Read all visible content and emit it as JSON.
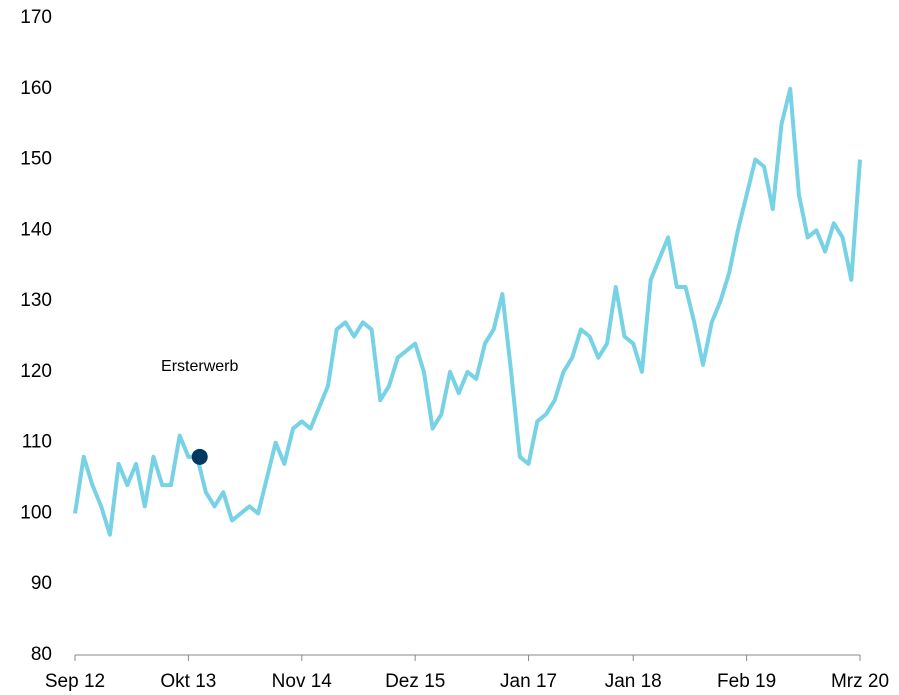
{
  "chart_data": {
    "type": "line",
    "x": [
      0,
      1,
      2,
      3,
      4,
      5,
      6,
      7,
      8,
      9,
      10,
      11,
      12,
      13,
      14,
      15,
      16,
      17,
      18,
      19,
      20,
      21,
      22,
      23,
      24,
      25,
      26,
      27,
      28,
      29,
      30,
      31,
      32,
      33,
      34,
      35,
      36,
      37,
      38,
      39,
      40,
      41,
      42,
      43,
      44,
      45,
      46,
      47,
      48,
      49,
      50,
      51,
      52,
      53,
      54,
      55,
      56,
      57,
      58,
      59,
      60,
      61,
      62,
      63,
      64,
      65,
      66,
      67,
      68,
      69,
      70,
      71,
      72,
      73,
      74,
      75,
      76,
      77,
      78,
      79,
      80,
      81,
      82,
      83,
      84,
      85,
      86,
      87,
      88,
      89,
      90
    ],
    "values": [
      100,
      108,
      104,
      101,
      97,
      107,
      104,
      107,
      101,
      108,
      104,
      104,
      111,
      108,
      108,
      103,
      101,
      103,
      99,
      100,
      101,
      100,
      105,
      110,
      107,
      112,
      113,
      112,
      115,
      118,
      126,
      127,
      125,
      127,
      126,
      116,
      118,
      122,
      123,
      124,
      120,
      112,
      114,
      120,
      117,
      120,
      119,
      124,
      126,
      131,
      120,
      108,
      107,
      113,
      114,
      116,
      120,
      122,
      126,
      125,
      122,
      124,
      132,
      125,
      124,
      120,
      133,
      136,
      139,
      132,
      132,
      127,
      121,
      127,
      130,
      134,
      140,
      145,
      150,
      149,
      143,
      155,
      160,
      145,
      139,
      140,
      137,
      141,
      139,
      133,
      150
    ],
    "color": "#76d2e4",
    "xlim": [
      0,
      90
    ],
    "xticks": [
      {
        "value": 0,
        "label": "Sep 12"
      },
      {
        "value": 13,
        "label": "Okt 13"
      },
      {
        "value": 26,
        "label": "Nov 14"
      },
      {
        "value": 39,
        "label": "Dez 15"
      },
      {
        "value": 52,
        "label": "Jan 17"
      },
      {
        "value": 64,
        "label": "Jan 18"
      },
      {
        "value": 77,
        "label": "Feb 19"
      },
      {
        "value": 90,
        "label": "Mrz 20"
      }
    ],
    "ylim": [
      80,
      170
    ],
    "yticks": [
      80,
      90,
      100,
      110,
      120,
      130,
      140,
      150,
      160,
      170
    ],
    "grid": false,
    "annotation": {
      "text": "Ersterwerb",
      "x": 14.3,
      "y": 108,
      "color": "#003a63"
    }
  }
}
